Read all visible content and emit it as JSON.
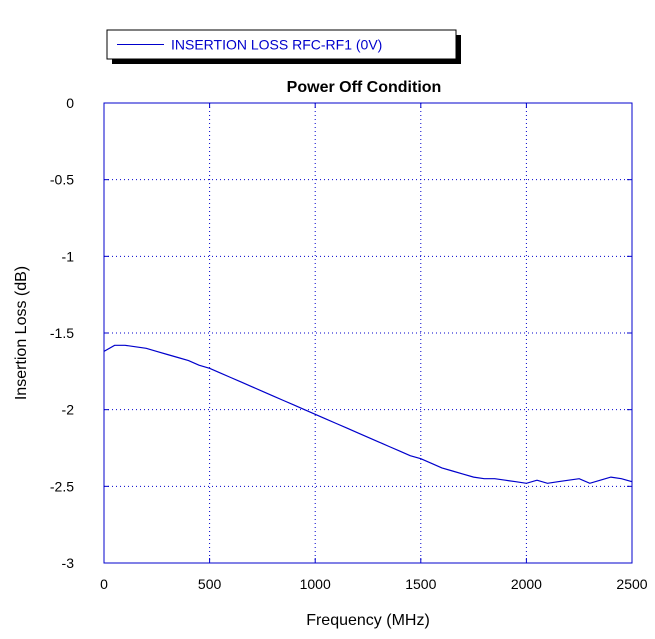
{
  "chart_data": {
    "type": "line",
    "title": "Power Off Condition",
    "xlabel": "Frequency (MHz)",
    "ylabel": "Insertion Loss (dB)",
    "xlim": [
      0,
      2500
    ],
    "ylim": [
      -3,
      0
    ],
    "x_ticks": [
      0,
      500,
      1000,
      1500,
      2000,
      2500
    ],
    "y_ticks": [
      0,
      -0.5,
      -1,
      -1.5,
      -2,
      -2.5,
      -3
    ],
    "x_tick_labels": [
      "0",
      "500",
      "1000",
      "1500",
      "2000",
      "2500"
    ],
    "y_tick_labels": [
      "0",
      "-0.5",
      "-1",
      "-1.5",
      "-2",
      "-2.5",
      "-3"
    ],
    "grid": true,
    "legend_position": "top-left",
    "series": [
      {
        "name": "INSERTION LOSS RFC-RF1 (0V)",
        "color": "#0000cc",
        "x": [
          0,
          50,
          100,
          150,
          200,
          250,
          300,
          350,
          400,
          450,
          500,
          550,
          600,
          650,
          700,
          750,
          800,
          850,
          900,
          950,
          1000,
          1050,
          1100,
          1150,
          1200,
          1250,
          1300,
          1350,
          1400,
          1450,
          1500,
          1550,
          1600,
          1650,
          1700,
          1750,
          1800,
          1850,
          1900,
          1950,
          2000,
          2050,
          2100,
          2150,
          2200,
          2250,
          2300,
          2350,
          2400,
          2450,
          2500
        ],
        "y": [
          -1.62,
          -1.58,
          -1.58,
          -1.59,
          -1.6,
          -1.62,
          -1.64,
          -1.66,
          -1.68,
          -1.71,
          -1.73,
          -1.76,
          -1.79,
          -1.82,
          -1.85,
          -1.88,
          -1.91,
          -1.94,
          -1.97,
          -2.0,
          -2.03,
          -2.06,
          -2.09,
          -2.12,
          -2.15,
          -2.18,
          -2.21,
          -2.24,
          -2.27,
          -2.3,
          -2.32,
          -2.35,
          -2.38,
          -2.4,
          -2.42,
          -2.44,
          -2.45,
          -2.45,
          -2.46,
          -2.47,
          -2.48,
          -2.46,
          -2.48,
          -2.47,
          -2.46,
          -2.45,
          -2.48,
          -2.46,
          -2.44,
          -2.45,
          -2.47
        ]
      }
    ]
  }
}
